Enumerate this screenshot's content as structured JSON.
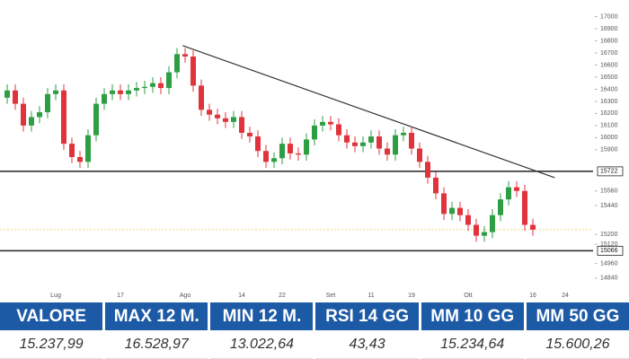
{
  "chart_data": {
    "type": "candlestick",
    "categories": [
      null,
      null,
      null,
      null,
      null,
      null,
      "Lug",
      null,
      null,
      null,
      null,
      null,
      null,
      null,
      "17",
      null,
      null,
      null,
      null,
      null,
      null,
      null,
      "Ago",
      null,
      null,
      null,
      null,
      null,
      null,
      "14",
      null,
      null,
      null,
      null,
      "22",
      null,
      null,
      null,
      null,
      null,
      "Set",
      null,
      null,
      null,
      null,
      "11",
      null,
      null,
      null,
      null,
      "19",
      null,
      null,
      null,
      null,
      null,
      null,
      "Ott",
      null,
      null,
      null,
      null,
      null,
      null,
      null,
      "16",
      null,
      null,
      null,
      "24"
    ],
    "open": [
      16330,
      16390,
      16280,
      16100,
      16170,
      16210,
      16360,
      16390,
      15950,
      15840,
      15800,
      16020,
      16280,
      16360,
      16390,
      16360,
      16390,
      16410,
      16420,
      16450,
      16410,
      16540,
      16690,
      16670,
      16430,
      16230,
      16190,
      16160,
      16130,
      16170,
      16040,
      16010,
      15890,
      15800,
      15830,
      15950,
      15870,
      15860,
      15985,
      16100,
      16130,
      16110,
      16020,
      15960,
      15930,
      15960,
      16010,
      15910,
      15860,
      16020,
      16040,
      15910,
      15800,
      15670,
      15540,
      15370,
      15420,
      15360,
      15280,
      15190,
      15220,
      15360,
      15490,
      15590,
      15560,
      15280,
      null,
      null,
      null,
      null
    ],
    "high": [
      16440,
      16440,
      16330,
      16220,
      16260,
      16410,
      16440,
      16440,
      16000,
      15890,
      16070,
      16330,
      16410,
      16440,
      16440,
      16440,
      16460,
      16470,
      16500,
      16500,
      16590,
      16740,
      16740,
      16720,
      16480,
      16280,
      16240,
      16210,
      16220,
      16220,
      16090,
      16060,
      15940,
      15880,
      16000,
      16000,
      15920,
      16035,
      16150,
      16180,
      16180,
      16160,
      16070,
      16010,
      16010,
      16060,
      16060,
      15960,
      16070,
      16090,
      16090,
      15960,
      15850,
      15720,
      15590,
      15470,
      15470,
      15410,
      15330,
      15270,
      15410,
      15540,
      15640,
      15640,
      15610,
      15330,
      null,
      null,
      null,
      null
    ],
    "low": [
      16280,
      16230,
      16050,
      16050,
      16120,
      16160,
      16310,
      15900,
      15790,
      15750,
      15750,
      15970,
      16230,
      16310,
      16310,
      16310,
      16340,
      16360,
      16370,
      16360,
      16360,
      16490,
      16620,
      16380,
      16180,
      16140,
      16110,
      16080,
      16080,
      15990,
      15960,
      15840,
      15750,
      15750,
      15780,
      15820,
      15810,
      15810,
      15935,
      16050,
      16060,
      15970,
      15910,
      15880,
      15880,
      15910,
      15860,
      15810,
      15810,
      15970,
      15860,
      15750,
      15620,
      15490,
      15320,
      15320,
      15310,
      15230,
      15140,
      15140,
      15170,
      15310,
      15440,
      15510,
      15230,
      15190,
      null,
      null,
      null,
      null
    ],
    "close": [
      16390,
      16280,
      16100,
      16170,
      16210,
      16360,
      16390,
      15950,
      15840,
      15800,
      16020,
      16280,
      16360,
      16390,
      16360,
      16390,
      16410,
      16420,
      16450,
      16410,
      16540,
      16690,
      16670,
      16430,
      16230,
      16190,
      16160,
      16130,
      16170,
      16040,
      16010,
      15890,
      15800,
      15830,
      15950,
      15870,
      15860,
      15985,
      16100,
      16130,
      16110,
      16020,
      15960,
      15930,
      15960,
      16010,
      15910,
      15860,
      16020,
      16040,
      15910,
      15800,
      15670,
      15540,
      15370,
      15420,
      15360,
      15280,
      15190,
      15220,
      15360,
      15490,
      15590,
      15560,
      15280,
      15240,
      null,
      null,
      null,
      null
    ],
    "colors": {
      "up": "#2e9e44",
      "down": "#e0333c"
    },
    "ylim": [
      14750,
      17100
    ],
    "yticks": [
      17000,
      16900,
      16800,
      16700,
      16600,
      16500,
      16400,
      16300,
      16200,
      16100,
      16000,
      15900,
      15560,
      15440,
      15200,
      15120,
      14960,
      14840
    ],
    "levels": [
      15722,
      15066
    ],
    "trend_line": {
      "x": [
        21.7,
        67.7
      ],
      "values": [
        16760,
        15670
      ]
    }
  },
  "table": {
    "header": [
      "VALORE",
      "MAX 12 M.",
      "MIN 12 M.",
      "RSI 14 GG",
      "MM 10 GG",
      "MM 50 GG"
    ],
    "rows": [
      [
        "15.237,99",
        "16.528,97",
        "13.022,64",
        "43,43",
        "15.234,64",
        "15.600,26"
      ]
    ]
  }
}
